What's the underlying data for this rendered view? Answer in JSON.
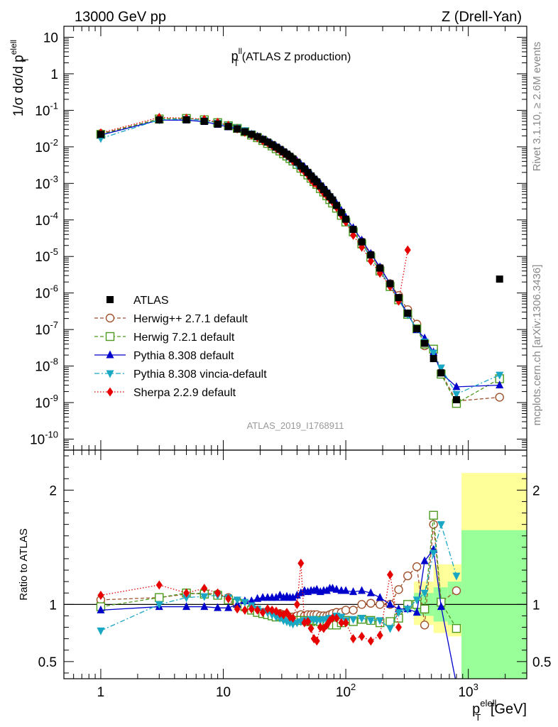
{
  "header": {
    "left": "13000 GeV pp",
    "right": "Z (Drell-Yan)"
  },
  "side_labels": {
    "rivet": "Rivet 3.1.10, ≥ 2.6M events",
    "mcplots": "mcplots.cern.ch [arXiv:1306.3436]"
  },
  "watermark": "ATLAS_2019_I1768911",
  "colors": {
    "ATLAS": "#000000",
    "herwigpp": "#a0522d",
    "herwig7": "#4d9a1e",
    "pythia": "#0000cc",
    "vincia": "#1aa7c4",
    "sherpa": "#e60000",
    "band_stat": "#99ff99",
    "band_syst": "#ffff99"
  },
  "chart_data": [
    {
      "type": "line",
      "title_main": "p",
      "title_sup": "ll",
      "title_sub": "T",
      "title_rest": " (ATLAS Z production)",
      "ylabel": "1/σ dσ/d p",
      "ylabel_sup": "elell",
      "ylabel_sub": "T",
      "y_log": true,
      "ylim": [
        5e-11,
        20
      ],
      "y_ticks": [
        {
          "base": "10",
          "exp": "-10",
          "value": 1e-10
        },
        {
          "base": "10",
          "exp": "-9",
          "value": 1e-09
        },
        {
          "base": "10",
          "exp": "-8",
          "value": 1e-08
        },
        {
          "base": "10",
          "exp": "-7",
          "value": 1e-07
        },
        {
          "base": "10",
          "exp": "-6",
          "value": 1e-06
        },
        {
          "base": "10",
          "exp": "-5",
          "value": 1e-05
        },
        {
          "base": "10",
          "exp": "-4",
          "value": 0.0001
        },
        {
          "base": "10",
          "exp": "-3",
          "value": 0.001
        },
        {
          "base": "10",
          "exp": "-2",
          "value": 0.01
        },
        {
          "base": "10",
          "exp": "-1",
          "value": 0.1
        },
        {
          "base": "1",
          "exp": "",
          "value": 1
        },
        {
          "base": "10",
          "exp": "",
          "value": 10
        }
      ],
      "x": [
        1,
        3,
        5,
        7,
        9,
        11,
        13,
        15,
        17,
        19,
        21,
        23,
        25,
        27,
        29,
        31,
        33,
        35,
        37,
        40,
        43,
        46,
        49,
        52,
        55,
        58,
        62,
        66,
        70,
        74,
        78,
        84,
        92,
        100,
        115,
        135,
        160,
        190,
        230,
        270,
        320,
        380,
        440,
        520,
        600,
        800,
        1800
      ],
      "data_series": {
        "name": "ATLAS",
        "values": [
          0.022,
          0.055,
          0.055,
          0.05,
          0.042,
          0.036,
          0.031,
          0.026,
          0.022,
          0.019,
          0.016,
          0.0135,
          0.0115,
          0.0098,
          0.0085,
          0.0073,
          0.0063,
          0.0055,
          0.0047,
          0.0038,
          0.003,
          0.0025,
          0.002,
          0.0016,
          0.0013,
          0.0011,
          0.00085,
          0.00068,
          0.00054,
          0.00043,
          0.00035,
          0.00025,
          0.00016,
          0.000105,
          5.5e-05,
          2.5e-05,
          1.1e-05,
          4.8e-06,
          1.8e-06,
          7.5e-07,
          2.8e-07,
          1.05e-07,
          4.2e-08,
          1.6e-08,
          6.5e-09,
          1.2e-09,
          2.4e-06
        ]
      },
      "series": [
        {
          "name": "Herwig++ 2.7.1 default",
          "values": [
            0.023,
            0.058,
            0.06,
            0.055,
            0.046,
            0.038,
            0.032,
            0.026,
            0.021,
            0.0178,
            0.0149,
            0.0124,
            0.0106,
            0.009,
            0.0078,
            0.0066,
            0.0057,
            0.0049,
            0.0042,
            0.0034,
            0.0027,
            0.0022,
            0.0018,
            0.00144,
            0.00117,
            0.00098,
            0.00076,
            0.00061,
            0.00049,
            0.00039,
            0.00032,
            0.00023,
            0.000148,
            9.8e-05,
            5.2e-05,
            2.5e-05,
            1.1e-05,
            4.8e-06,
            1.8e-06,
            8.5e-07,
            3.5e-07,
            1.4e-07,
            3.6e-08,
            2.8e-08,
            6.5e-09,
            1.1e-09,
            1.4e-09
          ]
        },
        {
          "name": "Herwig 7.2.1 default",
          "values": [
            0.022,
            0.058,
            0.06,
            0.055,
            0.046,
            0.038,
            0.032,
            0.026,
            0.021,
            0.0178,
            0.0149,
            0.0124,
            0.0106,
            0.0089,
            0.0077,
            0.0065,
            0.0056,
            0.0048,
            0.0041,
            0.0033,
            0.0026,
            0.0021,
            0.0017,
            0.00138,
            0.00112,
            0.00094,
            0.00072,
            0.00058,
            0.00046,
            0.00036,
            0.00029,
            0.00021,
            0.000134,
            8.8e-05,
            4.7e-05,
            2.2e-05,
            9.5e-06,
            4e-06,
            1.5e-06,
            6.5e-07,
            2.6e-07,
            1.05e-07,
            4e-08,
            2.9e-08,
            6e-09,
            9.5e-10,
            4.5e-09
          ]
        },
        {
          "name": "Pythia 8.308 default",
          "values": [
            0.021,
            0.054,
            0.054,
            0.049,
            0.041,
            0.035,
            0.031,
            0.026,
            0.022,
            0.0193,
            0.0163,
            0.0139,
            0.0119,
            0.0102,
            0.0089,
            0.0077,
            0.0067,
            0.0058,
            0.005,
            0.0041,
            0.0033,
            0.0028,
            0.0022,
            0.00178,
            0.00146,
            0.00124,
            0.00096,
            0.00077,
            0.00061,
            0.00049,
            0.0004,
            0.00028,
            0.000181,
            0.000118,
            6.1e-05,
            2.8e-05,
            1.2e-05,
            5.1e-06,
            1.8e-06,
            7.2e-07,
            2.7e-07,
            9.8e-08,
            5.8e-08,
            2.4e-08,
            6.4e-09,
            2.7e-09,
            3e-09
          ]
        },
        {
          "name": "Pythia 8.308 vincia-default",
          "values": [
            0.017,
            0.055,
            0.058,
            0.053,
            0.045,
            0.038,
            0.033,
            0.028,
            0.023,
            0.0195,
            0.016,
            0.0132,
            0.011,
            0.0091,
            0.0077,
            0.0064,
            0.0054,
            0.0046,
            0.0039,
            0.0032,
            0.0025,
            0.0021,
            0.0017,
            0.00138,
            0.00112,
            0.00094,
            0.00073,
            0.00059,
            0.00047,
            0.00038,
            0.00031,
            0.000225,
            0.000142,
            9e-05,
            4.8e-05,
            2.2e-05,
            9.5e-06,
            4.1e-06,
            1.5e-06,
            6.5e-07,
            2.5e-07,
            1.05e-07,
            4.6e-08,
            2.3e-08,
            9e-09,
            1.7e-09,
            5.7e-09
          ]
        },
        {
          "name": "Sherpa 2.2.9 default",
          "values": [
            0.024,
            0.064,
            0.061,
            0.057,
            0.047,
            0.039,
            0.031,
            0.025,
            0.021,
            0.018,
            0.0147,
            0.013,
            0.0109,
            0.0092,
            0.0078,
            0.0066,
            0.0058,
            0.0049,
            0.0041,
            0.0038,
            0.0025,
            0.0021,
            0.0017,
            0.00126,
            0.00102,
            0.00094,
            0.0007,
            0.00054,
            0.00045,
            0.00037,
            0.00031,
            0.00022,
            0.000135,
            8.8e-05,
            3.8e-05,
            1.8e-05,
            7.5e-06,
            3.5e-06,
            1.5e-06,
            6e-07,
            1.5e-05,
            null,
            null,
            null,
            null,
            null,
            null
          ]
        }
      ]
    },
    {
      "type": "line",
      "ylabel": "Ratio to ATLAS",
      "ylim": [
        0.35,
        2.35
      ],
      "y_ticks": [
        0.5,
        1,
        2
      ],
      "y_tick_labels": [
        "0.5",
        "1",
        "2"
      ],
      "xlabel": "p",
      "xlabel_sup": "elell",
      "xlabel_sub": "T",
      "xlabel_rest": " [GeV]",
      "x_log": true,
      "xlim": [
        0.5,
        3000
      ],
      "x_ticks": [
        {
          "base": "1",
          "exp": "",
          "value": 1
        },
        {
          "base": "10",
          "exp": "",
          "value": 10
        },
        {
          "base": "10",
          "exp": "2",
          "value": 100
        },
        {
          "base": "10",
          "exp": "3",
          "value": 1000
        }
      ],
      "bands": [
        {
          "x0": 360,
          "x1": 520,
          "syst": [
            0.82,
            1.2
          ],
          "stat": [
            0.9,
            1.1
          ]
        },
        {
          "x0": 520,
          "x1": 680,
          "syst": [
            0.75,
            1.35
          ],
          "stat": [
            0.85,
            1.15
          ]
        },
        {
          "x0": 680,
          "x1": 880,
          "syst": [
            0.72,
            1.35
          ],
          "stat": [
            0.82,
            1.2
          ]
        },
        {
          "x0": 880,
          "x1": 3000,
          "syst": [
            0.3,
            2.15
          ],
          "stat": [
            0.3,
            1.65
          ]
        }
      ],
      "x": [
        1,
        3,
        5,
        7,
        9,
        11,
        13,
        15,
        17,
        19,
        21,
        23,
        25,
        27,
        29,
        31,
        33,
        35,
        37,
        40,
        43,
        46,
        49,
        52,
        55,
        58,
        62,
        66,
        70,
        74,
        78,
        84,
        92,
        100,
        115,
        135,
        160,
        190,
        230,
        270,
        320,
        380,
        440,
        520,
        600,
        800
      ],
      "series": [
        {
          "name": "Herwig++ 2.7.1 default",
          "values": [
            1.04,
            1.06,
            1.09,
            1.1,
            1.09,
            1.06,
            1.03,
            1.0,
            0.97,
            0.94,
            0.93,
            0.92,
            0.92,
            0.92,
            0.92,
            0.91,
            0.9,
            0.89,
            0.89,
            0.9,
            0.91,
            0.9,
            0.91,
            0.91,
            0.91,
            0.91,
            0.9,
            0.9,
            0.9,
            0.91,
            0.92,
            0.93,
            0.93,
            0.95,
            0.95,
            1.0,
            1.01,
            1.0,
            1.0,
            1.13,
            1.25,
            1.33,
            0.82,
            1.7,
            1.02,
            1.12
          ]
        },
        {
          "name": "Herwig 7.2.1 default",
          "values": [
            0.98,
            1.06,
            1.1,
            1.09,
            1.08,
            1.04,
            1.01,
            0.98,
            0.95,
            0.93,
            0.92,
            0.91,
            0.9,
            0.89,
            0.9,
            0.89,
            0.88,
            0.87,
            0.86,
            0.86,
            0.86,
            0.86,
            0.85,
            0.85,
            0.86,
            0.86,
            0.85,
            0.85,
            0.85,
            0.84,
            0.82,
            0.82,
            0.84,
            0.86,
            0.85,
            0.87,
            0.86,
            0.84,
            0.85,
            0.88,
            1.0,
            1.0,
            0.96,
            1.78,
            1.02,
            0.79
          ]
        },
        {
          "name": "Pythia 8.308 default",
          "values": [
            0.95,
            0.98,
            0.98,
            0.98,
            0.97,
            0.97,
            1.0,
            1.03,
            1.03,
            1.05,
            1.06,
            1.06,
            1.06,
            1.06,
            1.08,
            1.06,
            1.07,
            1.06,
            1.06,
            1.08,
            1.1,
            1.12,
            1.11,
            1.12,
            1.12,
            1.13,
            1.11,
            1.12,
            1.12,
            1.14,
            1.14,
            1.13,
            1.12,
            1.12,
            1.11,
            1.12,
            1.1,
            1.06,
            1.0,
            0.96,
            0.96,
            0.93,
            1.38,
            1.48,
            0.98,
            0.3
          ]
        },
        {
          "name": "Pythia 8.308 vincia-default",
          "values": [
            0.77,
            1.0,
            1.06,
            1.07,
            1.08,
            1.06,
            1.04,
            1.02,
            0.99,
            0.96,
            0.94,
            0.93,
            0.91,
            0.89,
            0.88,
            0.86,
            0.85,
            0.84,
            0.83,
            0.84,
            0.85,
            0.86,
            0.86,
            0.87,
            0.87,
            0.86,
            0.86,
            0.87,
            0.87,
            0.88,
            0.88,
            0.9,
            0.89,
            0.86,
            0.87,
            0.88,
            0.86,
            0.86,
            0.79,
            0.93,
            0.96,
            1.04,
            1.1,
            1.45,
            1.7,
            1.25
          ]
        },
        {
          "name": "Sherpa 2.2.9 default",
          "values": [
            1.08,
            1.17,
            1.1,
            1.14,
            1.1,
            1.05,
            0.96,
            0.95,
            0.96,
            0.95,
            0.93,
            0.96,
            0.95,
            0.94,
            0.92,
            0.91,
            0.93,
            0.89,
            0.88,
            1.0,
            1.36,
            0.84,
            0.85,
            0.79,
            0.7,
            0.68,
            0.8,
            0.79,
            0.82,
            0.86,
            0.88,
            0.88,
            0.84,
            0.84,
            0.7,
            0.72,
            0.68,
            0.73,
            1.26,
            0.8,
            null,
            null,
            null,
            null,
            null,
            null
          ]
        }
      ]
    }
  ],
  "legend": {
    "placement": "lower-left",
    "entries": [
      "ATLAS",
      "Herwig++ 2.7.1 default",
      "Herwig 7.2.1 default",
      "Pythia 8.308 default",
      "Pythia 8.308 vincia-default",
      "Sherpa 2.2.9 default"
    ]
  }
}
